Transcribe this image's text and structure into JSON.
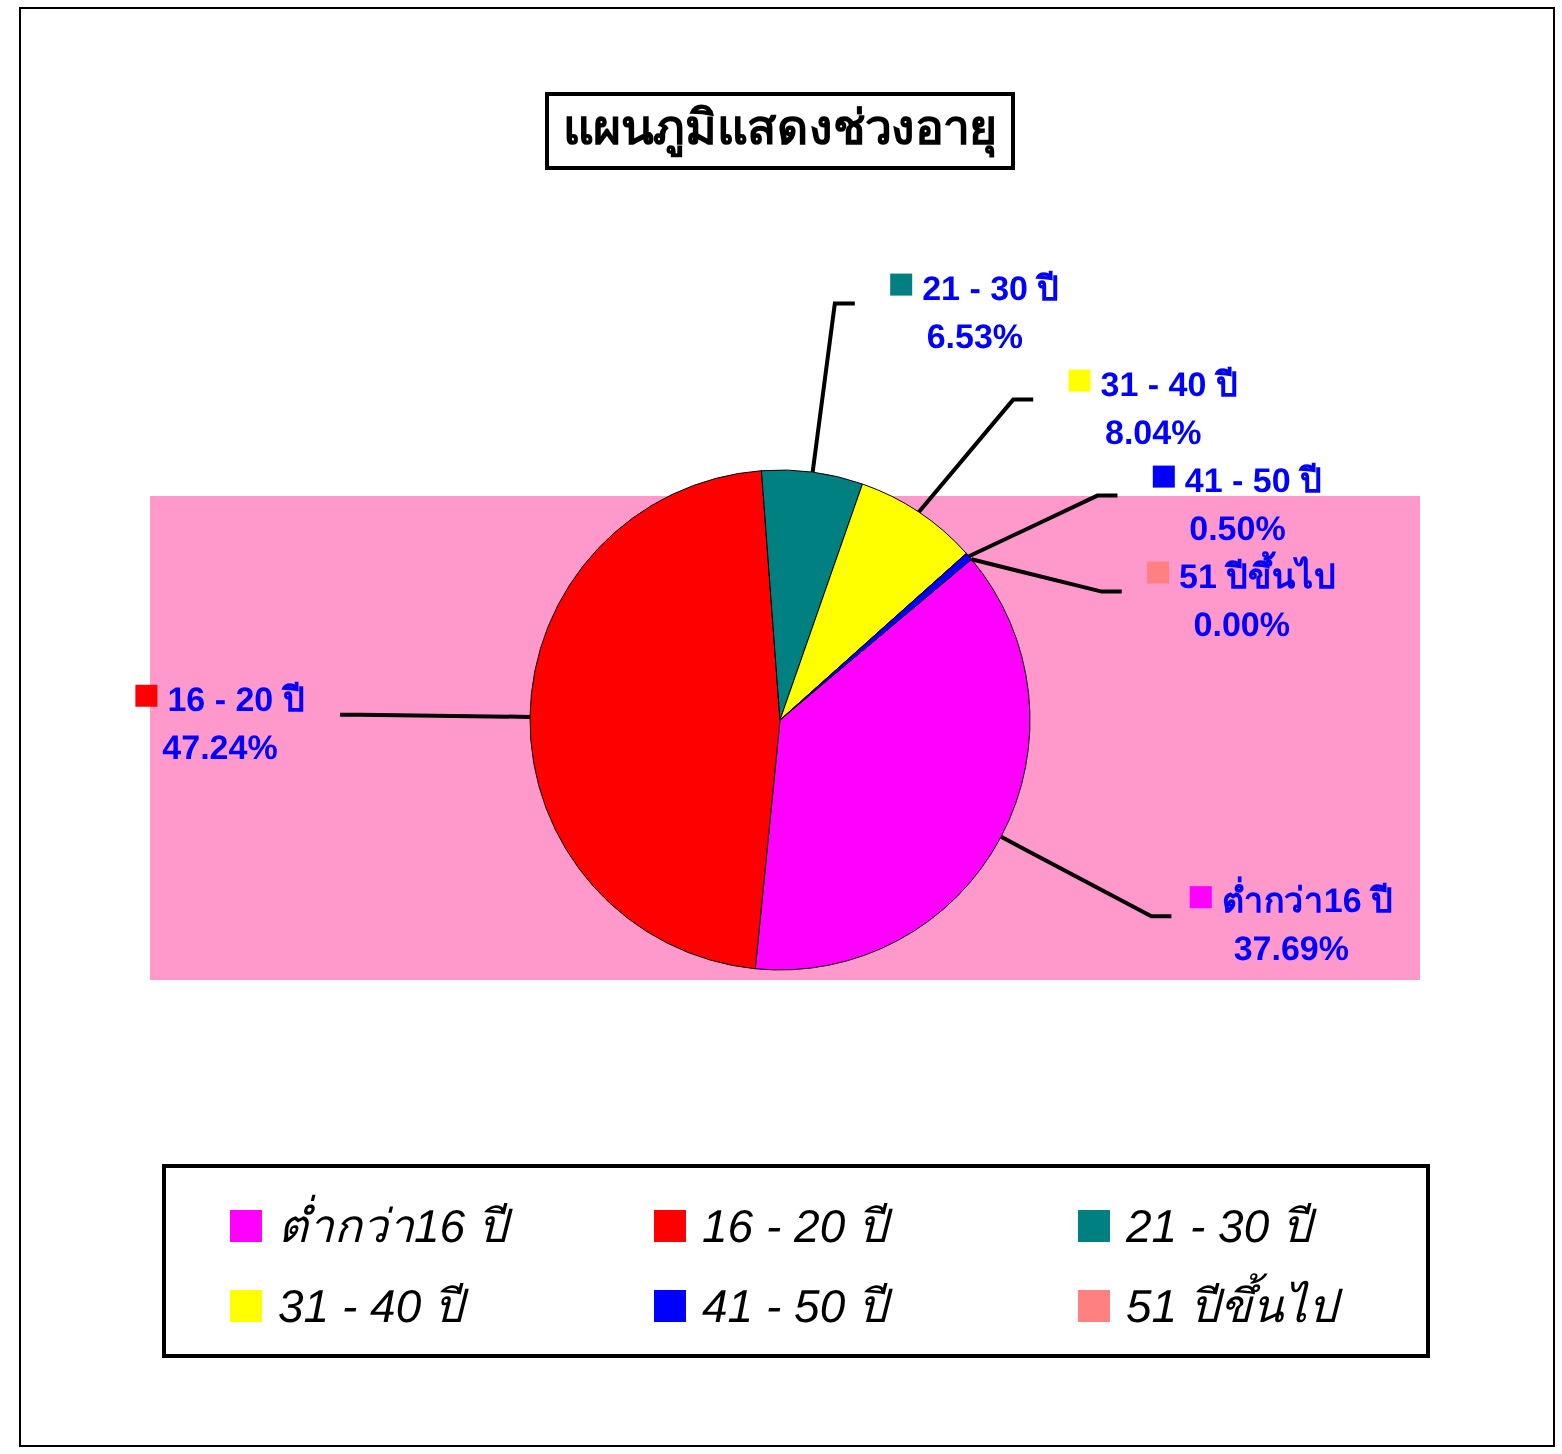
{
  "chart_data": {
    "type": "pie",
    "title": "แผนภูมิแสดงช่วงอายุ",
    "categories": [
      "ต่ำกว่า16 ปี",
      "16 - 20 ปี",
      "21 - 30 ปี",
      "31 - 40 ปี",
      "41 - 50 ปี",
      "51 ปีขึ้นไป"
    ],
    "values": [
      37.69,
      47.24,
      6.53,
      8.04,
      0.5,
      0.0
    ],
    "colors": [
      "#ff00ff",
      "#ff0000",
      "#008080",
      "#ffff00",
      "#0000ff",
      "#ff8080"
    ],
    "value_labels": [
      "37.69%",
      "47.24%",
      "6.53%",
      "8.04%",
      "0.50%",
      "0.00%"
    ],
    "legend": "bottom"
  }
}
